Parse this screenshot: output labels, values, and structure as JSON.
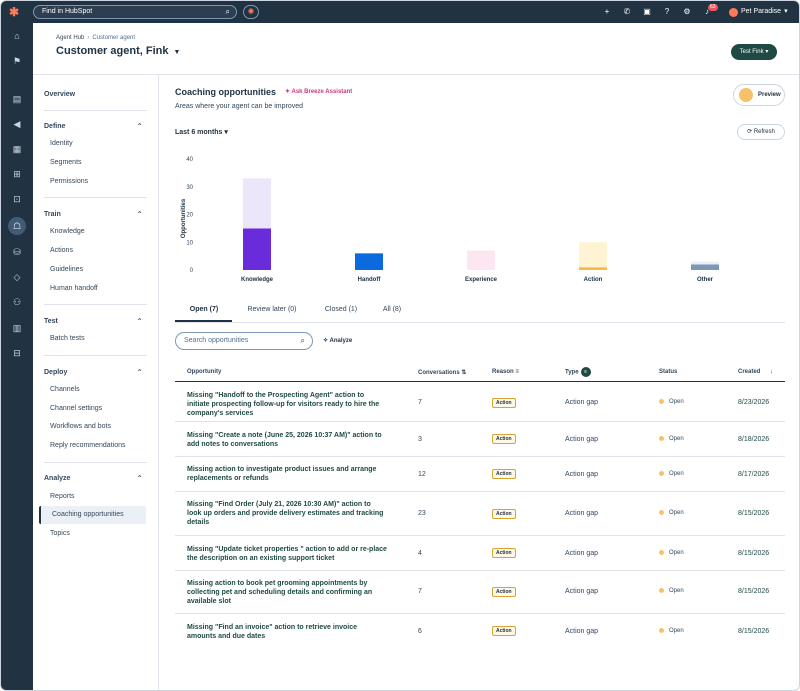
{
  "topbar": {
    "search_placeholder": "Find in HubSpot",
    "notifications_count": "63",
    "account_name": "Pet Paradise"
  },
  "header": {
    "breadcrumb_root": "Agent Hub",
    "breadcrumb_current": "Customer agent",
    "title": "Customer agent, Fink",
    "test_button": "Test Fink"
  },
  "sidenav": {
    "overview": "Overview",
    "sections": [
      {
        "title": "Define",
        "items": [
          "Identity",
          "Segments",
          "Permissions"
        ]
      },
      {
        "title": "Train",
        "items": [
          "Knowledge",
          "Actions",
          "Guidelines",
          "Human handoff"
        ]
      },
      {
        "title": "Test",
        "items": [
          "Batch tests"
        ]
      },
      {
        "title": "Deploy",
        "items": [
          "Channels",
          "Channel settings",
          "Workflows and bots",
          "Reply recommendations"
        ]
      },
      {
        "title": "Analyze",
        "items": [
          "Reports",
          "Coaching opportunities",
          "Topics"
        ]
      }
    ]
  },
  "main": {
    "title": "Coaching opportunities",
    "breeze_link": "Ask Breeze Assistant",
    "subtitle": "Areas where your agent can be improved",
    "preview_button": "Preview",
    "range_dropdown": "Last 6 months",
    "refresh_button": "Refresh"
  },
  "chart_data": {
    "type": "bar",
    "ylabel": "Opportunities",
    "ylim": [
      0,
      40
    ],
    "yticks": [
      0,
      10,
      20,
      30,
      40
    ],
    "categories": [
      "Knowledge",
      "Handoff",
      "Experience",
      "Action",
      "Other"
    ],
    "series": [
      {
        "values": [
          15,
          6,
          0,
          1,
          2
        ],
        "colors": [
          "#6a2bdb",
          "#0b6bde",
          "#f9d8e8",
          "#f5b945",
          "#7c98b6"
        ]
      },
      {
        "values": [
          18,
          0,
          7,
          9,
          1
        ],
        "colors": [
          "#ece6fb",
          "#ffffff",
          "#fce6f0",
          "#fef3d2",
          "#eaf0f6"
        ]
      }
    ]
  },
  "tabs": [
    {
      "label": "Open (7)"
    },
    {
      "label": "Review later (0)"
    },
    {
      "label": "Closed (1)"
    },
    {
      "label": "All (8)"
    }
  ],
  "opp_search_placeholder": "Search opportunities",
  "analyze_label": "Analyze",
  "table": {
    "headers": {
      "opportunity": "Opportunity",
      "conversations": "Conversations",
      "reason": "Reason",
      "type": "Type",
      "status": "Status",
      "created": "Created"
    },
    "rows": [
      {
        "title": "Missing \"Handoff to the Prospecting Agent\" action to initiate prospecting follow-up for visitors ready to hire the company's services",
        "conversations": "7",
        "reason": "Action",
        "type": "Action gap",
        "status": "Open",
        "created": "8/23/2026"
      },
      {
        "title": "Missing \"Create a note (June 25, 2026 10:37 AM)\" action to add notes to conversations",
        "conversations": "3",
        "reason": "Action",
        "type": "Action gap",
        "status": "Open",
        "created": "8/18/2026"
      },
      {
        "title": "Missing action to investigate product issues and arrange replacements or refunds",
        "conversations": "12",
        "reason": "Action",
        "type": "Action gap",
        "status": "Open",
        "created": "8/17/2026"
      },
      {
        "title": "Missing \"Find Order (July 21, 2026 10:30 AM)\" action to look up orders and provide delivery estimates and tracking details",
        "conversations": "23",
        "reason": "Action",
        "type": "Action gap",
        "status": "Open",
        "created": "8/15/2026"
      },
      {
        "title": "Missing \"Update ticket properties \" action to add or re-place the description on an existing support ticket",
        "conversations": "4",
        "reason": "Action",
        "type": "Action gap",
        "status": "Open",
        "created": "8/15/2026"
      },
      {
        "title": "Missing action to book pet grooming appointments by collecting pet and scheduling details and confirming an available slot",
        "conversations": "7",
        "reason": "Action",
        "type": "Action gap",
        "status": "Open",
        "created": "8/15/2026"
      },
      {
        "title": "Missing \"Find an invoice\" action to retrieve invoice amounts and due dates",
        "conversations": "6",
        "reason": "Action",
        "type": "Action gap",
        "status": "Open",
        "created": "8/15/2026"
      }
    ]
  }
}
